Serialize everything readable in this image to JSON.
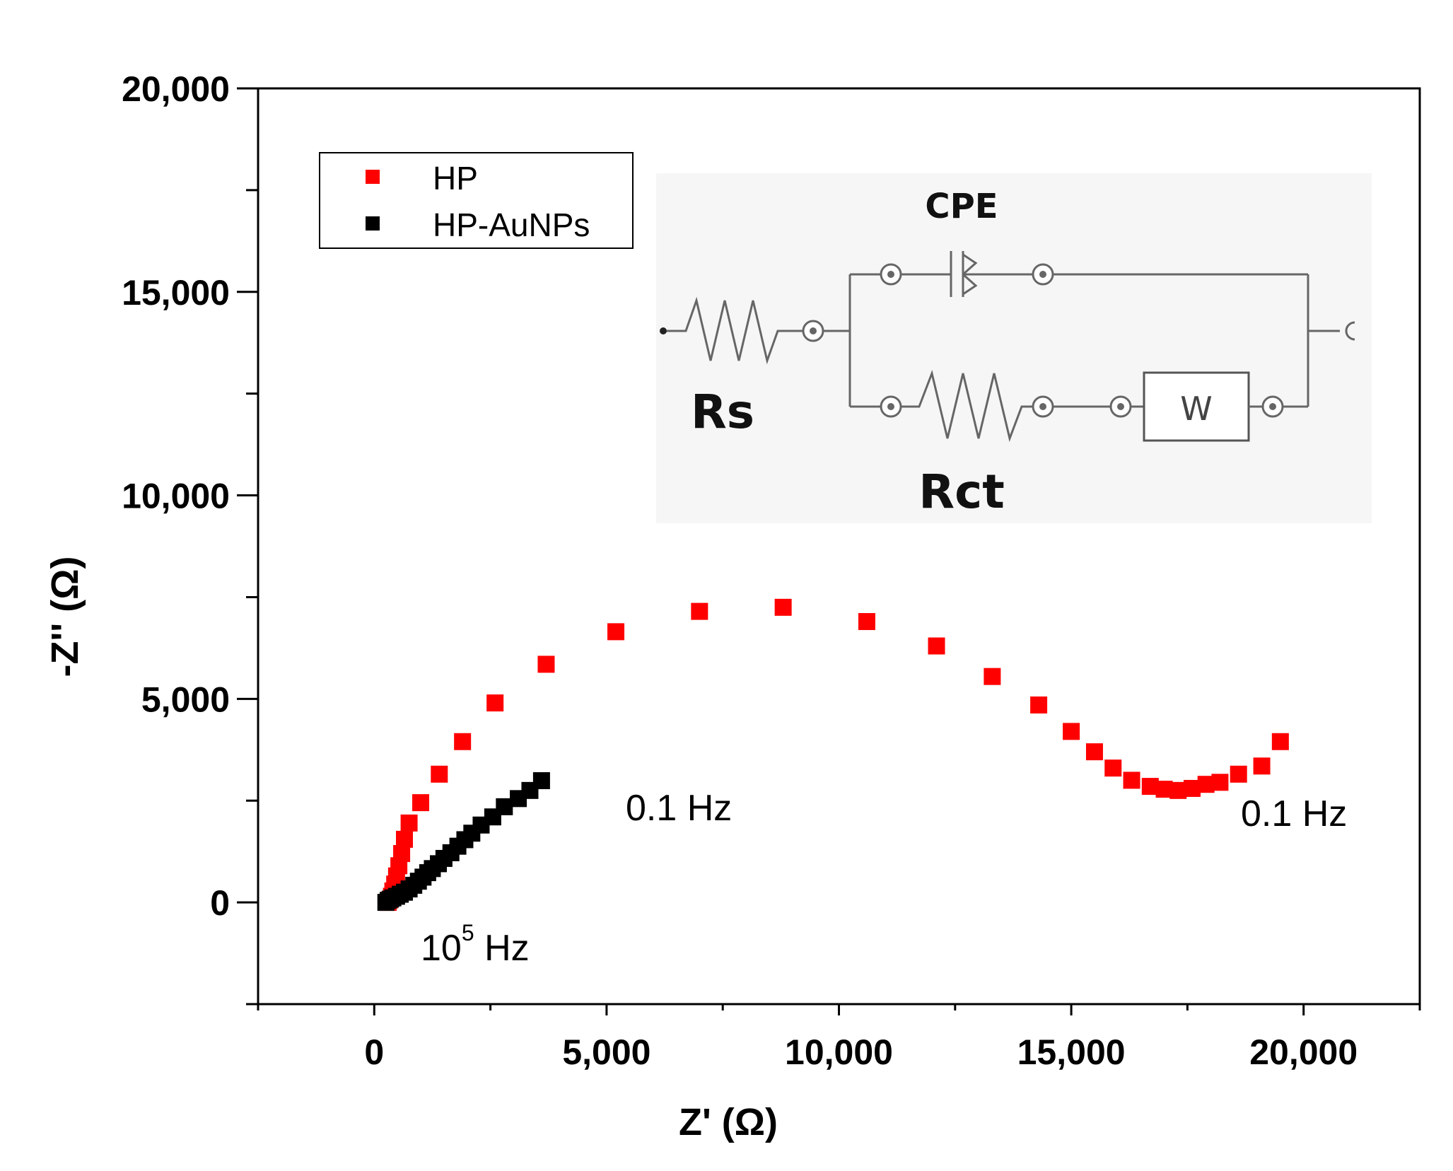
{
  "chart_data": {
    "type": "scatter",
    "title": "",
    "xlabel": "Z' (Ω)",
    "ylabel": "-Z'' (Ω)",
    "xlim": [
      -2500,
      22500
    ],
    "ylim": [
      -2500,
      20000
    ],
    "x_ticks": [
      0,
      5000,
      10000,
      15000,
      20000
    ],
    "x_tick_labels": [
      "0",
      "5,000",
      "10,000",
      "15,000",
      "20,000"
    ],
    "y_ticks": [
      0,
      5000,
      10000,
      15000,
      20000
    ],
    "y_tick_labels": [
      "0",
      "5,000",
      "10,000",
      "15,000",
      "20,000"
    ],
    "grid": false,
    "legend_position": "top-left",
    "series": [
      {
        "name": "HP",
        "color": "#ff0000",
        "marker": "square",
        "points": [
          [
            300,
            0
          ],
          [
            330,
            60
          ],
          [
            370,
            150
          ],
          [
            400,
            280
          ],
          [
            440,
            450
          ],
          [
            480,
            650
          ],
          [
            530,
            900
          ],
          [
            590,
            1200
          ],
          [
            650,
            1550
          ],
          [
            750,
            1950
          ],
          [
            1000,
            2450
          ],
          [
            1400,
            3150
          ],
          [
            1900,
            3950
          ],
          [
            2600,
            4900
          ],
          [
            3700,
            5850
          ],
          [
            5200,
            6650
          ],
          [
            7000,
            7150
          ],
          [
            8800,
            7250
          ],
          [
            10600,
            6900
          ],
          [
            12100,
            6300
          ],
          [
            13300,
            5550
          ],
          [
            14300,
            4850
          ],
          [
            15000,
            4200
          ],
          [
            15500,
            3700
          ],
          [
            15900,
            3300
          ],
          [
            16300,
            3000
          ],
          [
            16700,
            2850
          ],
          [
            17000,
            2780
          ],
          [
            17300,
            2750
          ],
          [
            17600,
            2800
          ],
          [
            17900,
            2900
          ],
          [
            18200,
            2950
          ],
          [
            18600,
            3150
          ],
          [
            19100,
            3350
          ],
          [
            19500,
            3950
          ]
        ]
      },
      {
        "name": "HP-AuNPs",
        "color": "#000000",
        "marker": "square",
        "points": [
          [
            250,
            0
          ],
          [
            300,
            50
          ],
          [
            350,
            80
          ],
          [
            400,
            110
          ],
          [
            480,
            150
          ],
          [
            560,
            200
          ],
          [
            650,
            250
          ],
          [
            750,
            330
          ],
          [
            850,
            420
          ],
          [
            950,
            520
          ],
          [
            1050,
            620
          ],
          [
            1150,
            730
          ],
          [
            1250,
            830
          ],
          [
            1380,
            950
          ],
          [
            1500,
            1080
          ],
          [
            1650,
            1220
          ],
          [
            1800,
            1380
          ],
          [
            1950,
            1540
          ],
          [
            2100,
            1700
          ],
          [
            2300,
            1900
          ],
          [
            2550,
            2100
          ],
          [
            2800,
            2350
          ],
          [
            3100,
            2550
          ],
          [
            3350,
            2750
          ],
          [
            3600,
            2990
          ]
        ]
      }
    ],
    "annotations": [
      {
        "text": "0.1 Hz",
        "near": "end of HP-AuNPs series"
      },
      {
        "text": "0.1 Hz",
        "near": "end of HP series"
      },
      {
        "text": "10",
        "superscript": "5",
        "suffix": " Hz",
        "near": "origin"
      }
    ]
  },
  "inset": {
    "description_labels": {
      "cpe": "CPE",
      "rs": "Rs",
      "rct": "Rct",
      "w": "W"
    }
  }
}
